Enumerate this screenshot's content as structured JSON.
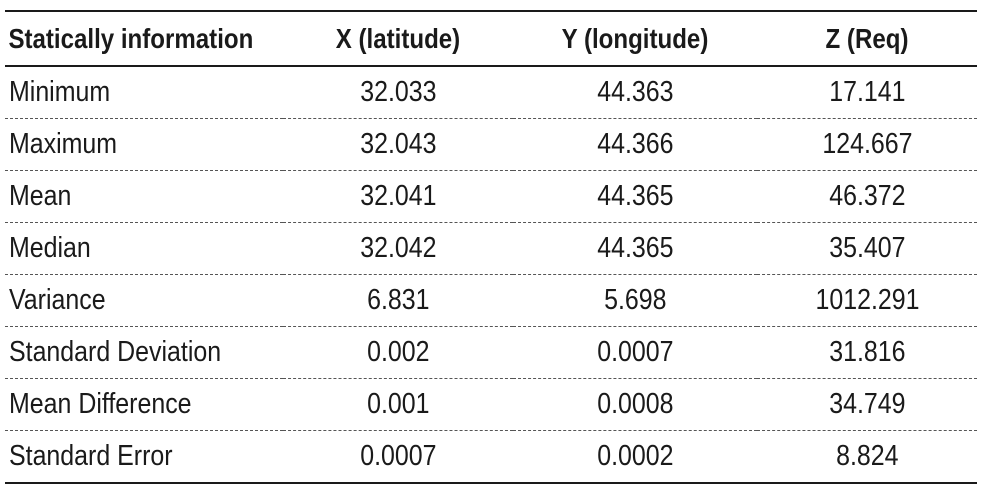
{
  "table": {
    "headers": [
      "Statically information",
      "X (latitude)",
      "Y (longitude)",
      "Z (Req)"
    ],
    "rows": [
      [
        "Minimum",
        "32.033",
        "44.363",
        "17.141"
      ],
      [
        "Maximum",
        "32.043",
        "44.366",
        "124.667"
      ],
      [
        "Mean",
        "32.041",
        "44.365",
        "46.372"
      ],
      [
        "Median",
        "32.042",
        "44.365",
        "35.407"
      ],
      [
        "Variance",
        "6.831",
        "5.698",
        "1012.291"
      ],
      [
        "Standard Deviation",
        "0.002",
        "0.0007",
        "31.816"
      ],
      [
        "Mean Difference",
        "0.001",
        "0.0008",
        "34.749"
      ],
      [
        "Standard Error",
        "0.0007",
        "0.0002",
        "8.824"
      ]
    ]
  }
}
